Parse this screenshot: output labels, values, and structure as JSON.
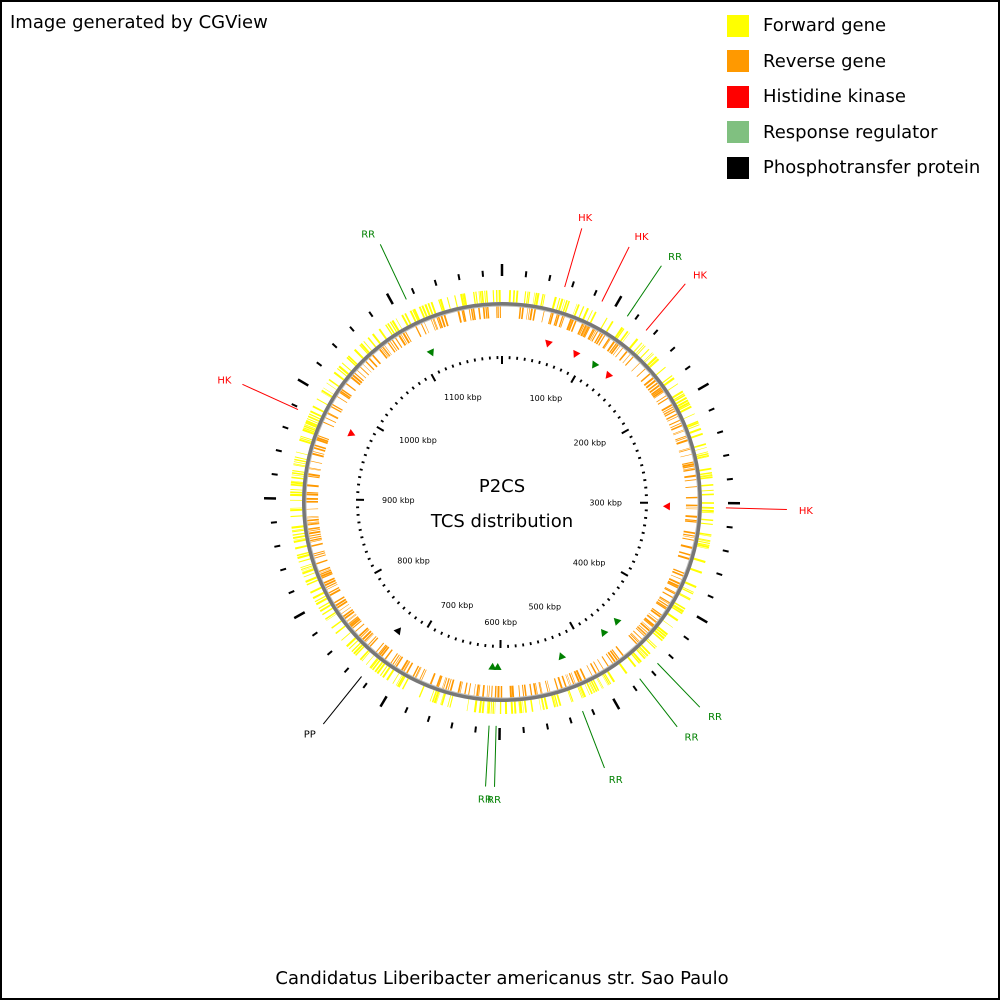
{
  "credit": "Image generated by CGView",
  "legend": [
    {
      "label": "Forward gene",
      "color": "#ffff00"
    },
    {
      "label": "Reverse gene",
      "color": "#ff9900"
    },
    {
      "label": "Histidine kinase",
      "color": "#ff0000"
    },
    {
      "label": "Response regulator",
      "color": "#80c080"
    },
    {
      "label": "Phosphotransfer protein",
      "color": "#000000"
    }
  ],
  "center_title": [
    "P2CS",
    "TCS distribution"
  ],
  "organism": "Candidatus Liberibacter americanus str. Sao Paulo",
  "genome": {
    "length_kbp": 1196,
    "ticks": [
      {
        "label": "100 kbp",
        "kbp": 100
      },
      {
        "label": "200 kbp",
        "kbp": 200
      },
      {
        "label": "300 kbp",
        "kbp": 300
      },
      {
        "label": "400 kbp",
        "kbp": 400
      },
      {
        "label": "500 kbp",
        "kbp": 500
      },
      {
        "label": "600 kbp",
        "kbp": 600
      },
      {
        "label": "700 kbp",
        "kbp": 700
      },
      {
        "label": "800 kbp",
        "kbp": 800
      },
      {
        "label": "900 kbp",
        "kbp": 900
      },
      {
        "label": "1000 kbp",
        "kbp": 1000
      },
      {
        "label": "1100 kbp",
        "kbp": 1100
      }
    ]
  },
  "features": [
    {
      "label": "HK",
      "kbp": 54,
      "color": "#ff0000"
    },
    {
      "label": "HK",
      "kbp": 88,
      "color": "#ff0000"
    },
    {
      "label": "RR",
      "kbp": 113,
      "color": "#008000"
    },
    {
      "label": "HK",
      "kbp": 133,
      "color": "#ff0000"
    },
    {
      "label": "HK",
      "kbp": 304,
      "color": "#ff0000"
    },
    {
      "label": "RR",
      "kbp": 452,
      "color": "#008000"
    },
    {
      "label": "RR",
      "kbp": 472,
      "color": "#008000"
    },
    {
      "label": "RR",
      "kbp": 528,
      "color": "#008000"
    },
    {
      "label": "RR",
      "kbp": 603,
      "color": "#008000"
    },
    {
      "label": "RR",
      "kbp": 609,
      "color": "#008000"
    },
    {
      "label": "PP",
      "kbp": 727,
      "color": "#000000"
    },
    {
      "label": "HK",
      "kbp": 978,
      "color": "#ff0000"
    },
    {
      "label": "RR",
      "kbp": 1112,
      "color": "#008000"
    }
  ]
}
